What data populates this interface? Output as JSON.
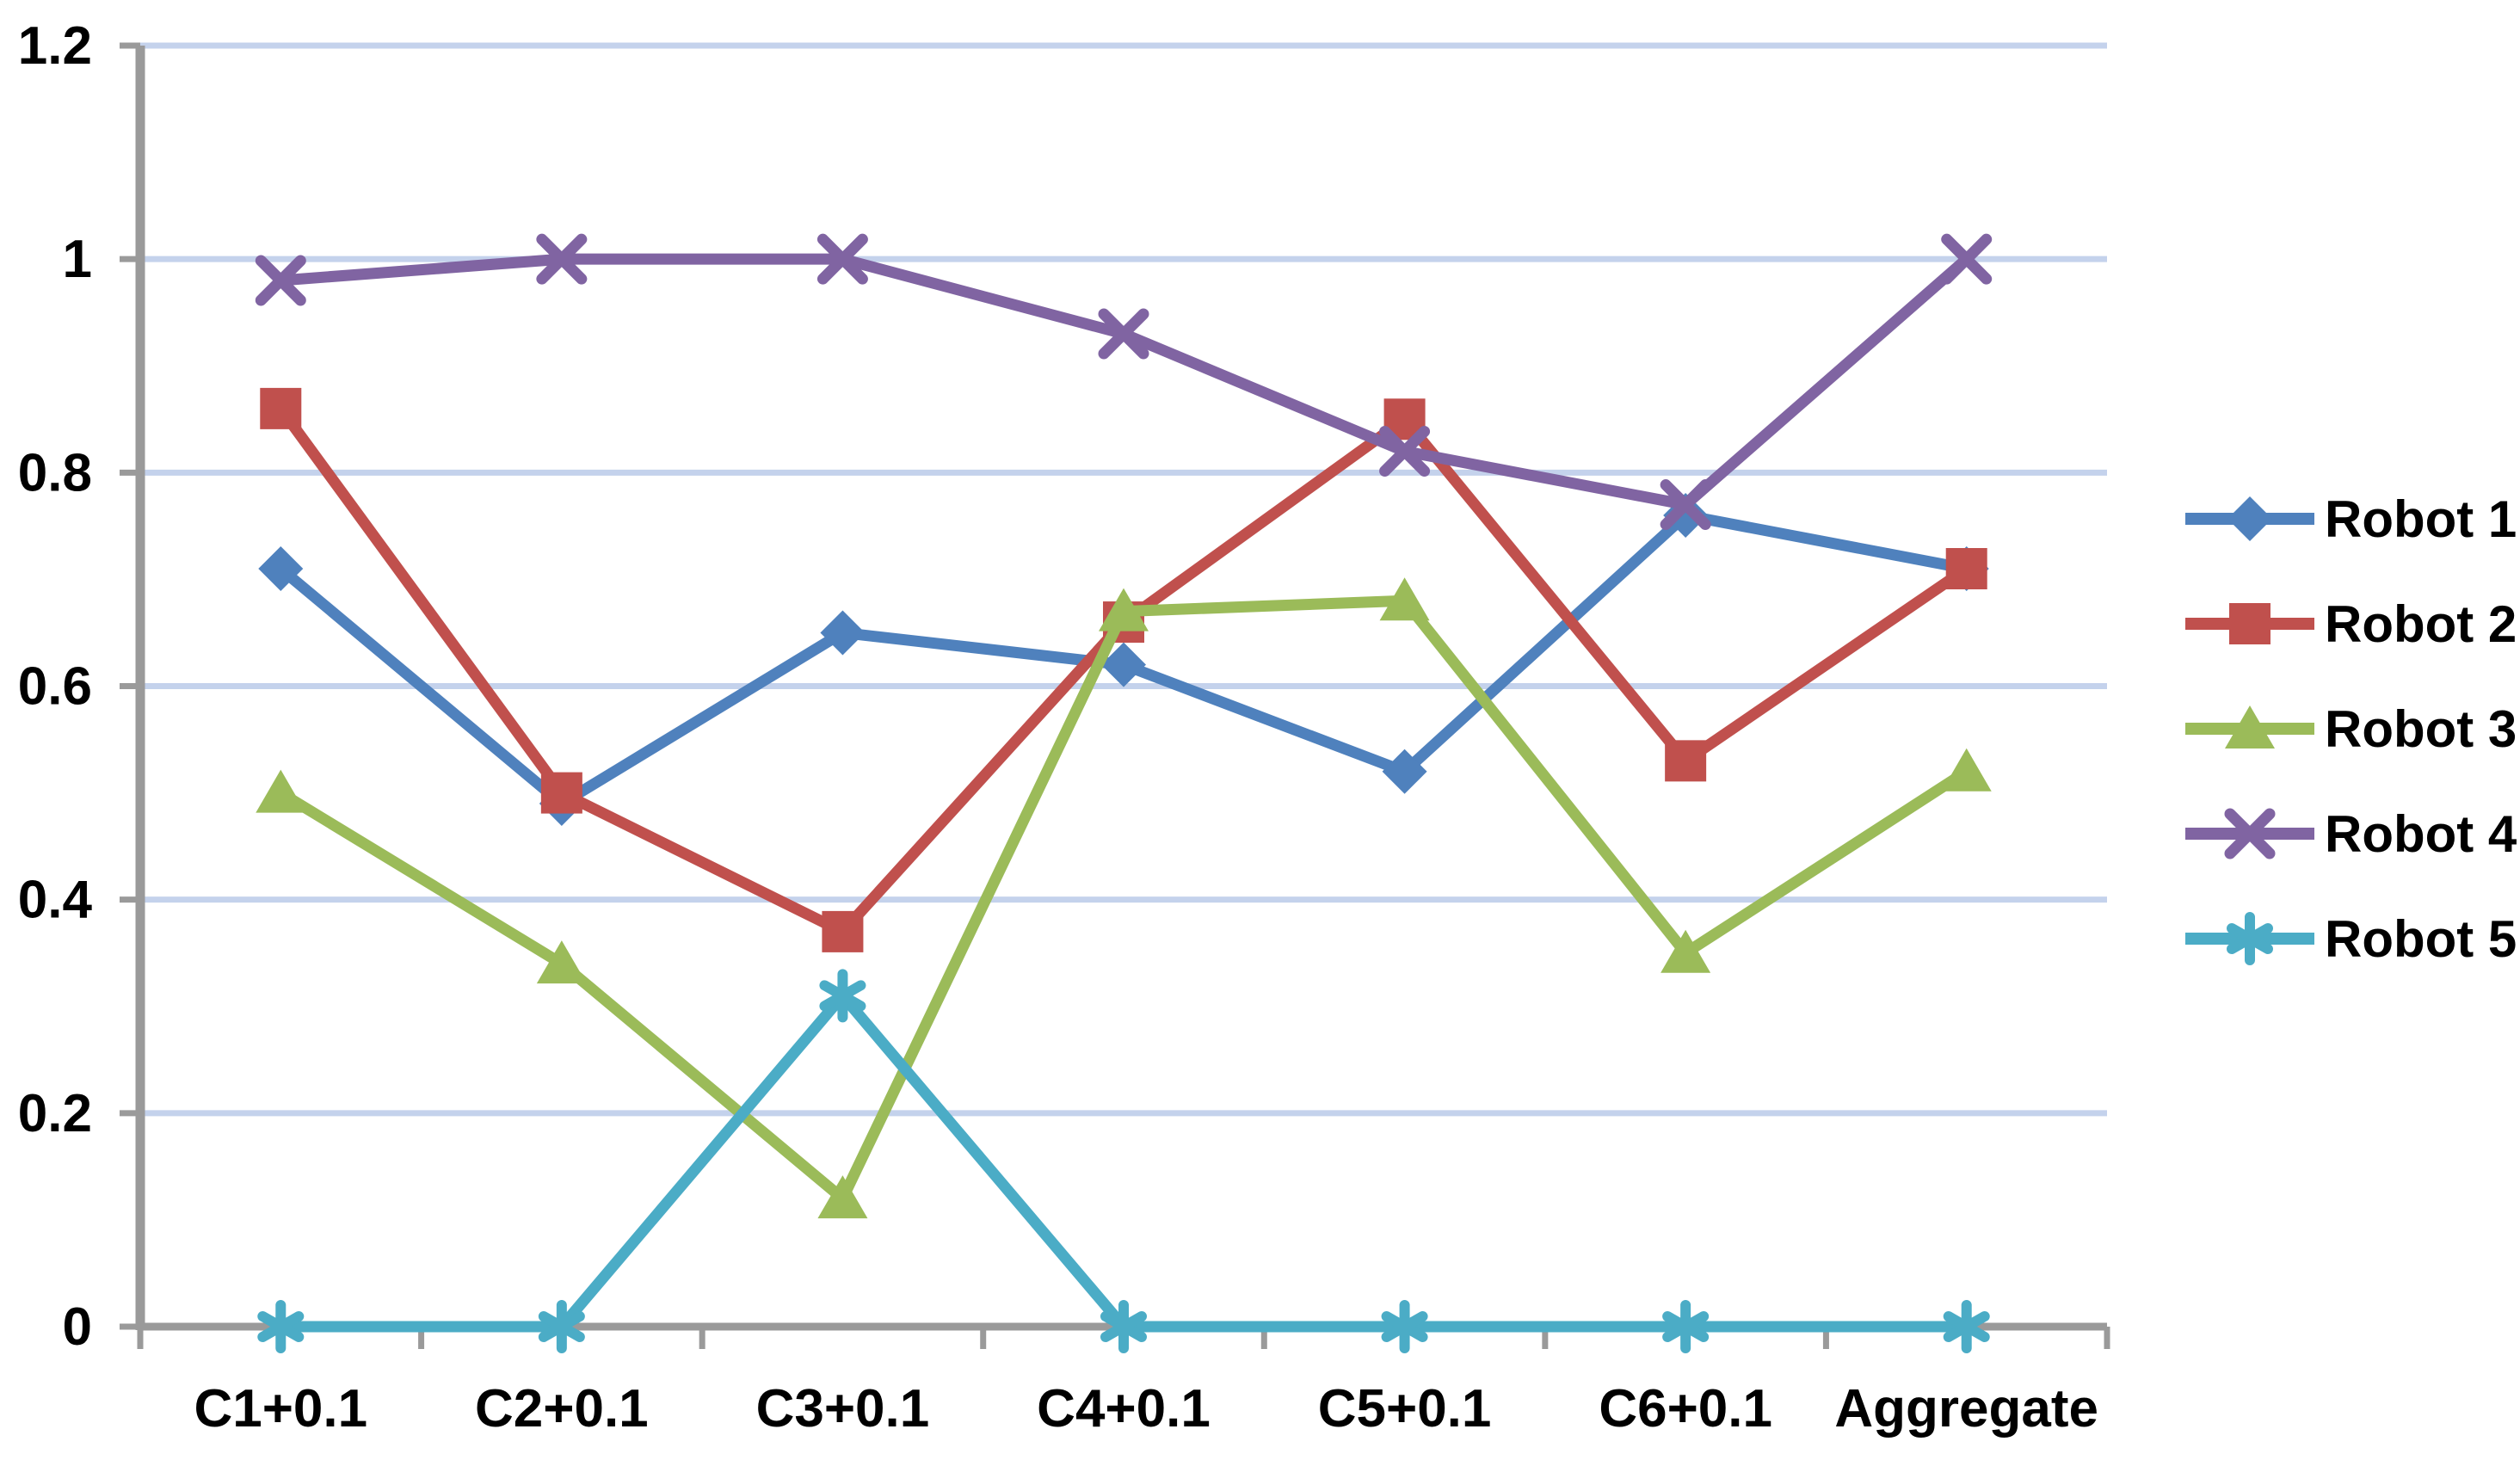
{
  "chart_data": {
    "type": "line",
    "title": "",
    "xlabel": "",
    "ylabel": "",
    "categories": [
      "C1+0.1",
      "C2+0.1",
      "C3+0.1",
      "C4+0.1",
      "C5+0.1",
      "C6+0.1",
      "Aggregate"
    ],
    "series": [
      {
        "name": "Robot 1",
        "color": "#4F81BD",
        "marker": "diamond",
        "values": [
          0.71,
          0.49,
          0.65,
          0.62,
          0.52,
          0.76,
          0.71
        ]
      },
      {
        "name": "Robot 2",
        "color": "#C0504D",
        "marker": "square",
        "values": [
          0.86,
          0.5,
          0.37,
          0.66,
          0.85,
          0.53,
          0.71
        ]
      },
      {
        "name": "Robot 3",
        "color": "#9BBB59",
        "marker": "triangle",
        "values": [
          0.5,
          0.34,
          0.12,
          0.67,
          0.68,
          0.35,
          0.52
        ]
      },
      {
        "name": "Robot 4",
        "color": "#8064A2",
        "marker": "x",
        "values": [
          0.98,
          1.0,
          1.0,
          0.93,
          0.82,
          0.77,
          1.0
        ]
      },
      {
        "name": "Robot 5",
        "color": "#4BACC6",
        "marker": "asterisk",
        "values": [
          0.0,
          0.0,
          0.31,
          0.0,
          0.0,
          0.0,
          0.0
        ]
      }
    ],
    "ylim": [
      0,
      1.2
    ],
    "yticks": [
      "0",
      "0.2",
      "0.4",
      "0.6",
      "0.8",
      "1",
      "1.2"
    ],
    "ytick_values": [
      0,
      0.2,
      0.4,
      0.6,
      0.8,
      1,
      1.2
    ],
    "grid": true,
    "legend_position": "right"
  },
  "colors": {
    "background": "#FFFFFF",
    "gridline": "#C4D2EC",
    "axis": "#9A9A9A",
    "text": "#000000"
  }
}
